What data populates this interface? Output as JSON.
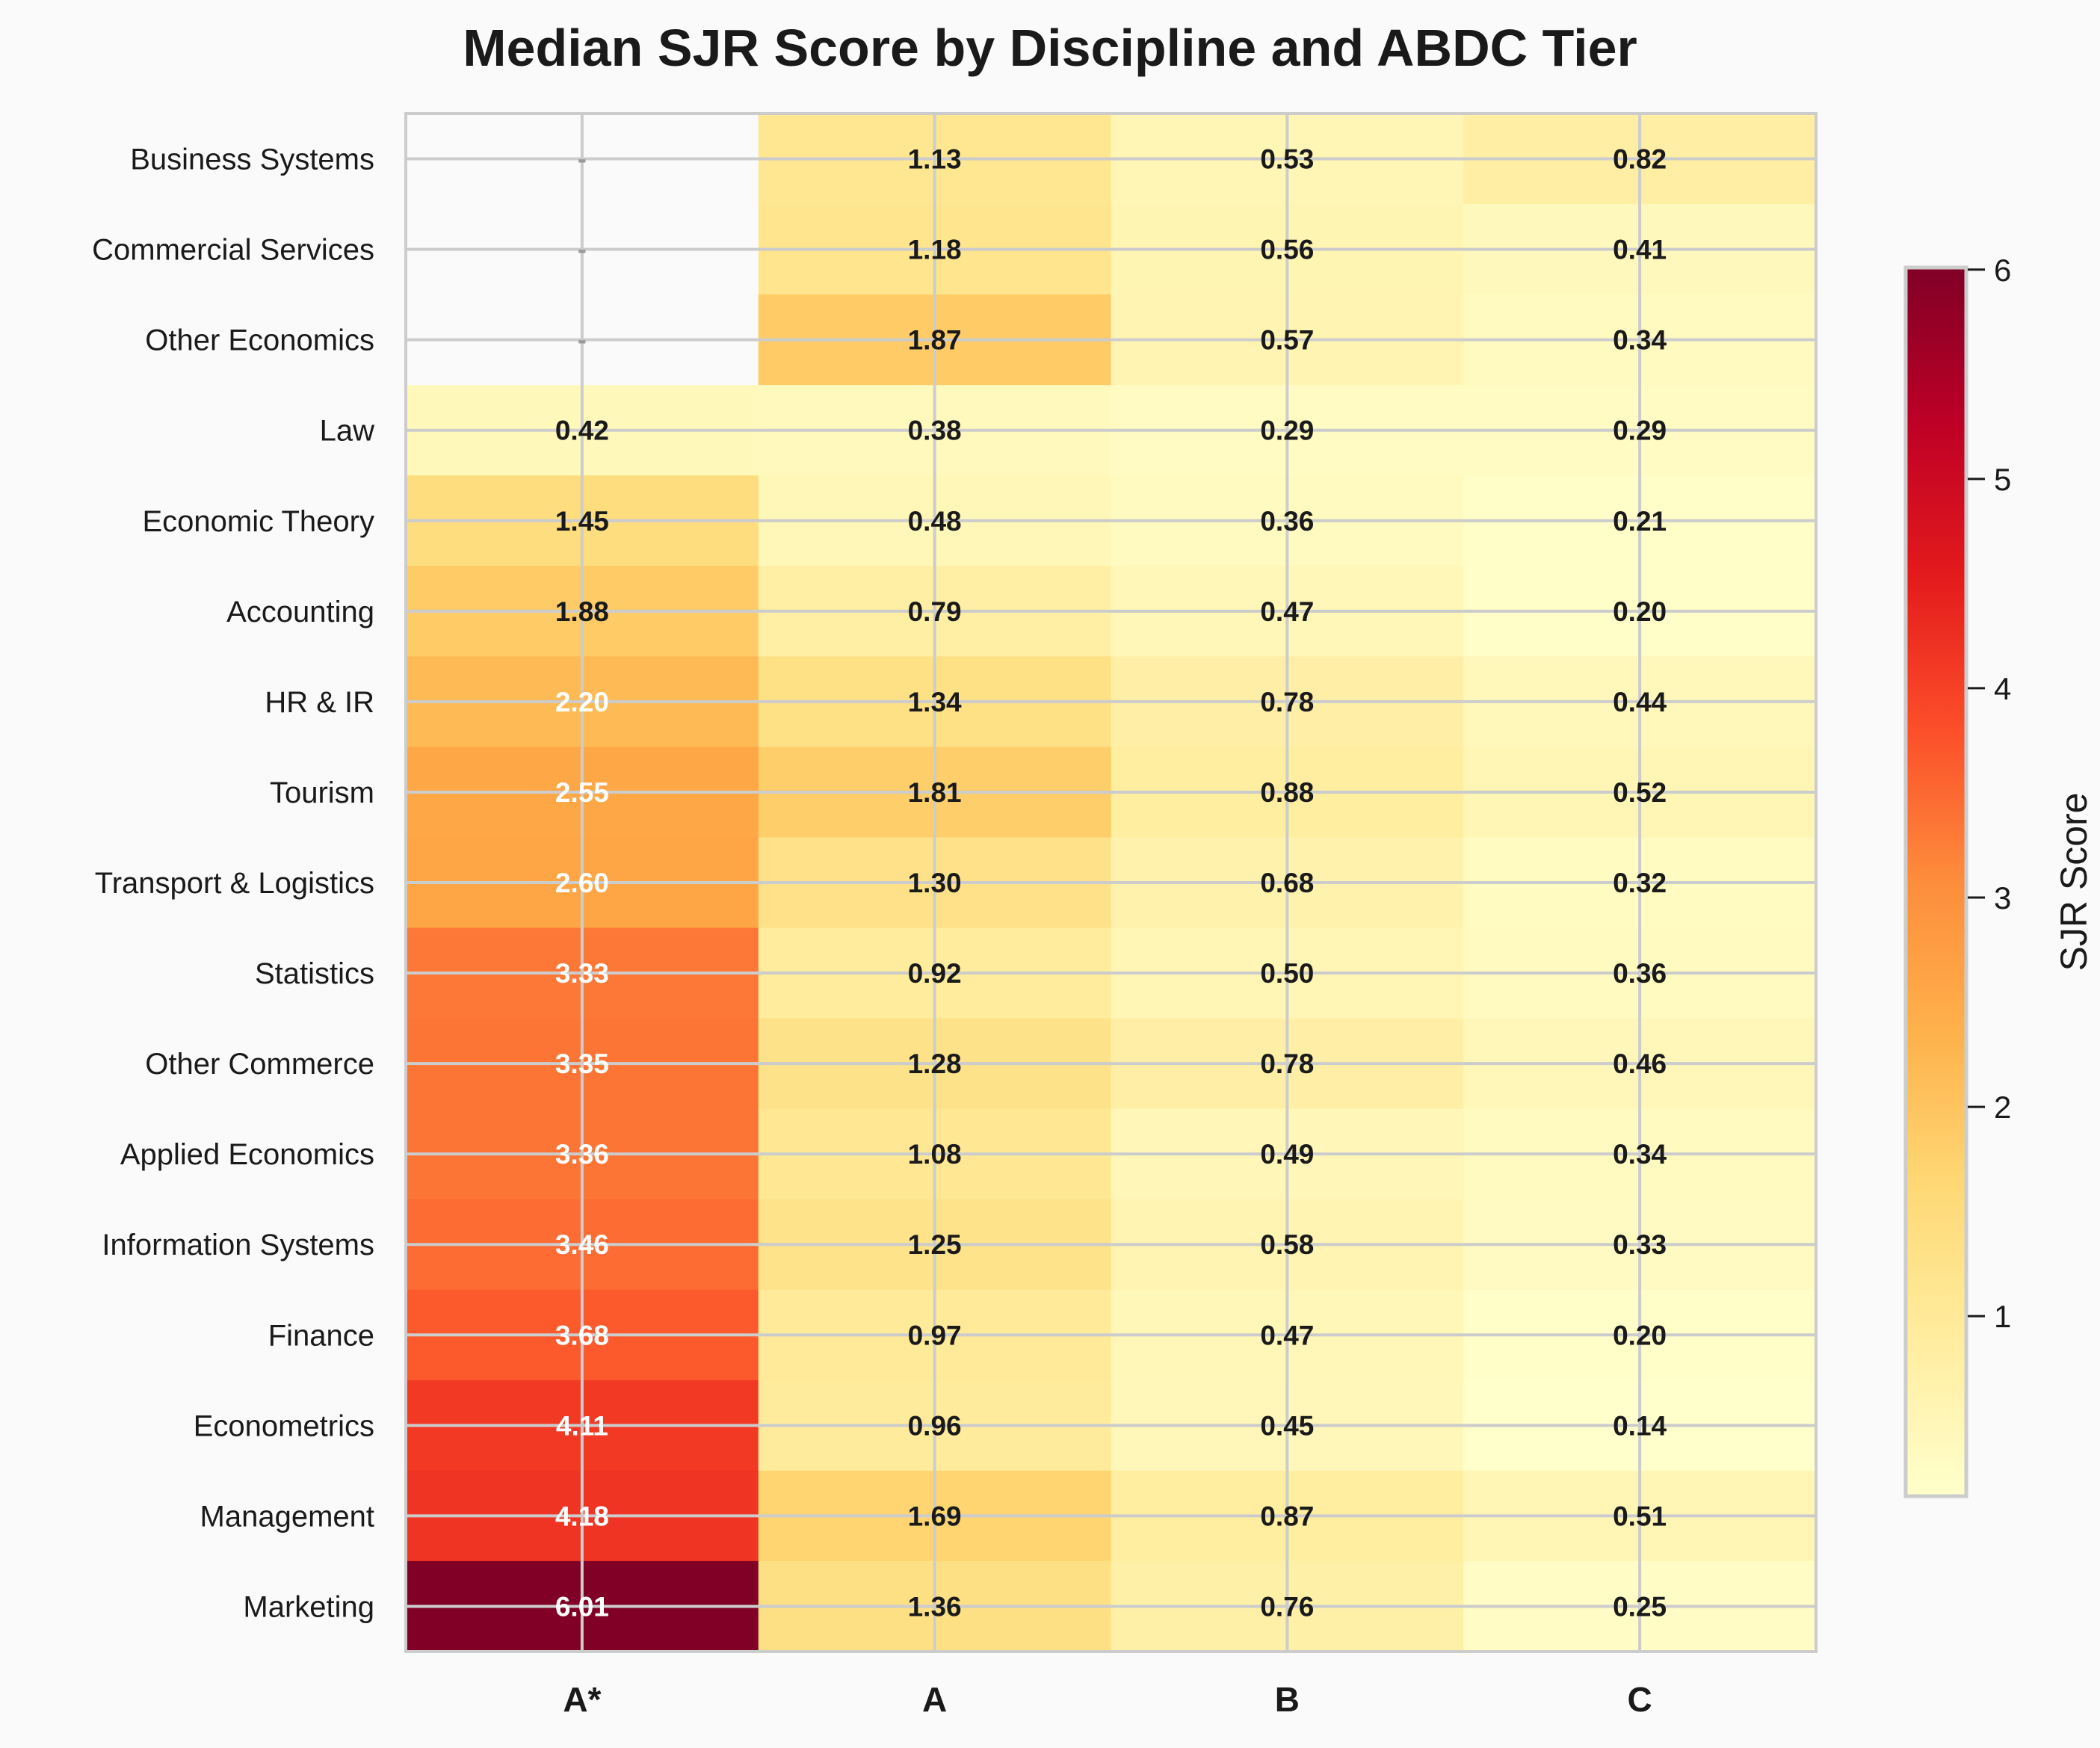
{
  "chart_data": {
    "type": "heatmap",
    "title": "Median SJR Score by Discipline and ABDC Tier",
    "columns": [
      "A*",
      "A",
      "B",
      "C"
    ],
    "rows": [
      "Business Systems",
      "Commercial Services",
      "Other Economics",
      "Law",
      "Economic Theory",
      "Accounting",
      "HR & IR",
      "Tourism",
      "Transport & Logistics",
      "Statistics",
      "Other Commerce",
      "Applied Economics",
      "Information Systems",
      "Finance",
      "Econometrics",
      "Management",
      "Marketing"
    ],
    "values": [
      [
        null,
        1.13,
        0.53,
        0.82
      ],
      [
        null,
        1.18,
        0.56,
        0.41
      ],
      [
        null,
        1.87,
        0.57,
        0.34
      ],
      [
        0.42,
        0.38,
        0.29,
        0.29
      ],
      [
        1.45,
        0.48,
        0.36,
        0.21
      ],
      [
        1.88,
        0.79,
        0.47,
        0.2
      ],
      [
        2.2,
        1.34,
        0.78,
        0.44
      ],
      [
        2.55,
        1.81,
        0.88,
        0.52
      ],
      [
        2.6,
        1.3,
        0.68,
        0.32
      ],
      [
        3.33,
        0.92,
        0.5,
        0.36
      ],
      [
        3.35,
        1.28,
        0.78,
        0.46
      ],
      [
        3.36,
        1.08,
        0.49,
        0.34
      ],
      [
        3.46,
        1.25,
        0.58,
        0.33
      ],
      [
        3.68,
        0.97,
        0.47,
        0.2
      ],
      [
        4.11,
        0.96,
        0.45,
        0.14
      ],
      [
        4.18,
        1.69,
        0.87,
        0.51
      ],
      [
        6.01,
        1.36,
        0.76,
        0.25
      ]
    ],
    "missing_label": "-",
    "colormap": "YlOrRd",
    "colormap_stops": [
      "#ffffcc",
      "#ffeda0",
      "#fed976",
      "#feb24c",
      "#fd8d3c",
      "#fc4e2a",
      "#e31a1c",
      "#bd0026",
      "#800026"
    ],
    "color_range": [
      0.14,
      6.01
    ],
    "colorbar": {
      "label": "SJR Score",
      "ticks": [
        1,
        2,
        3,
        4,
        5,
        6
      ]
    },
    "grid": true
  }
}
